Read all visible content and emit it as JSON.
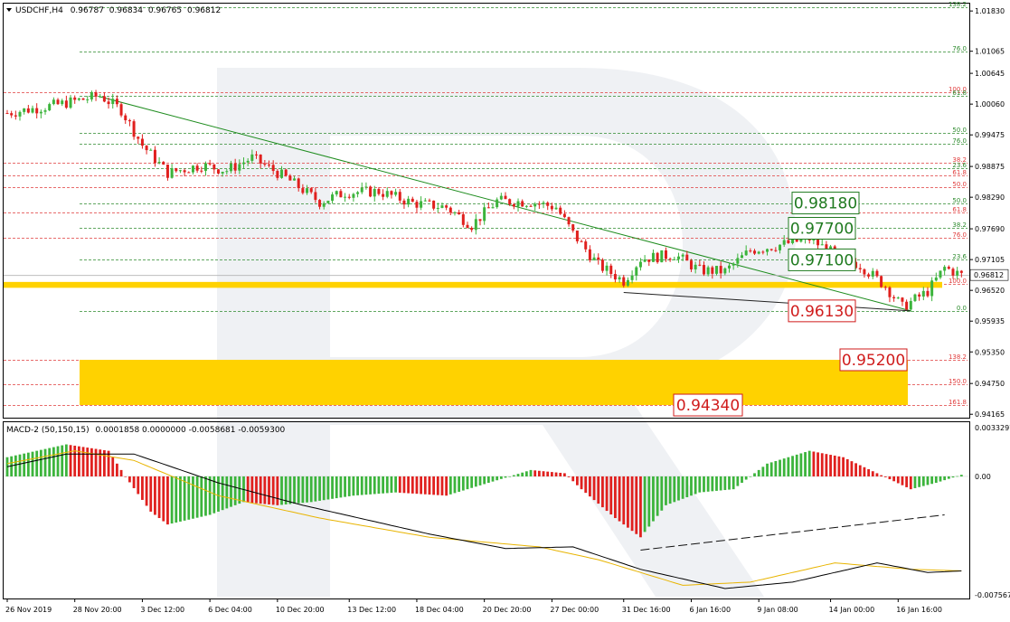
{
  "main_header": {
    "symbol": "USDCHF,H4",
    "open": "0.96787",
    "high": "0.96834",
    "low": "0.96765",
    "close": "0.96812"
  },
  "macd_header": {
    "name": "MACD-2 (50,150,15)",
    "values": "0.0001858 0.0000000 -0.0058681 -0.0059300"
  },
  "price_axis": {
    "ticks": [
      "1.01830",
      "1.01065",
      "1.00645",
      "1.00060",
      "0.99475",
      "0.98875",
      "0.98290",
      "0.97690",
      "0.97105",
      "0.96520",
      "0.95935",
      "0.95350",
      "0.94750",
      "0.94165"
    ],
    "current_price": "0.96812"
  },
  "macd_axis": {
    "ticks": [
      "0.0033297",
      "0.00",
      "-0.007567"
    ]
  },
  "time_axis": {
    "labels": [
      "26 Nov 2019",
      "28 Nov 20:00",
      "3 Dec 12:00",
      "6 Dec 04:00",
      "10 Dec 20:00",
      "13 Dec 12:00",
      "18 Dec 04:00",
      "20 Dec 20:00",
      "27 Dec 00:00",
      "31 Dec 16:00",
      "6 Jan 16:00",
      "9 Jan 08:00",
      "14 Jan 00:00",
      "16 Jan 16:00"
    ]
  },
  "target_boxes": [
    {
      "label": "0.98180",
      "style": "green"
    },
    {
      "label": "0.97700",
      "style": "green"
    },
    {
      "label": "0.97100",
      "style": "green"
    },
    {
      "label": "0.96130",
      "style": "red"
    },
    {
      "label": "0.95200",
      "style": "red"
    },
    {
      "label": "0.94340",
      "style": "red"
    }
  ],
  "colors": {
    "bull_candle": "#3cb43c",
    "bear_candle": "#e0201e",
    "fib_green": "#2e8b2e",
    "fib_red": "#e03c3c",
    "highlight_yellow": "#ffd200",
    "macd_signal": "#000000",
    "macd_slow": "#e8b400"
  },
  "chart_data": [
    {
      "type": "candlestick",
      "title": "USDCHF,H4",
      "ylim": [
        0.941,
        1.0197
      ],
      "grid": false,
      "fib_levels_top": [
        {
          "label": "138.2",
          "price": 1.019,
          "color": "green"
        },
        {
          "label": "76.0",
          "price": 1.0106,
          "color": "green"
        },
        {
          "label": "100.0",
          "price": 1.0028,
          "color": "red"
        },
        {
          "label": "61.8",
          "price": 1.0022,
          "color": "green"
        },
        {
          "label": "50.0",
          "price": 0.9952,
          "color": "green"
        },
        {
          "label": "76.0",
          "price": 0.993,
          "color": "green"
        },
        {
          "label": "38.2",
          "price": 0.9895,
          "color": "red"
        },
        {
          "label": "23.6",
          "price": 0.9885,
          "color": "green"
        },
        {
          "label": "61.8",
          "price": 0.987,
          "color": "red"
        },
        {
          "label": "50.0",
          "price": 0.9849,
          "color": "red"
        },
        {
          "label": "50.0",
          "price": 0.9818,
          "color": "green"
        },
        {
          "label": "61.8",
          "price": 0.98,
          "color": "red"
        },
        {
          "label": "38.2",
          "price": 0.977,
          "color": "green"
        },
        {
          "label": "76.0",
          "price": 0.9752,
          "color": "red"
        },
        {
          "label": "23.6",
          "price": 0.971,
          "color": "green"
        },
        {
          "label": "100.0",
          "price": 0.9665,
          "color": "red"
        },
        {
          "label": "0.0",
          "price": 0.9613,
          "color": "green"
        },
        {
          "label": "138.2",
          "price": 0.952,
          "color": "red"
        },
        {
          "label": "150.0",
          "price": 0.9474,
          "color": "red"
        },
        {
          "label": "161.8",
          "price": 0.9434,
          "color": "red"
        }
      ],
      "anchors": [
        {
          "t": 0,
          "p": 0.9989
        },
        {
          "t": 12,
          "p": 1.0005
        },
        {
          "t": 22,
          "p": 1.0022
        },
        {
          "t": 27,
          "p": 0.9995
        },
        {
          "t": 32,
          "p": 0.9928
        },
        {
          "t": 38,
          "p": 0.9875
        },
        {
          "t": 46,
          "p": 0.989
        },
        {
          "t": 52,
          "p": 0.988
        },
        {
          "t": 58,
          "p": 0.9904
        },
        {
          "t": 66,
          "p": 0.9866
        },
        {
          "t": 74,
          "p": 0.982
        },
        {
          "t": 80,
          "p": 0.9838
        },
        {
          "t": 88,
          "p": 0.984
        },
        {
          "t": 96,
          "p": 0.9818
        },
        {
          "t": 104,
          "p": 0.981
        },
        {
          "t": 110,
          "p": 0.9776
        },
        {
          "t": 116,
          "p": 0.9822
        },
        {
          "t": 124,
          "p": 0.982
        },
        {
          "t": 130,
          "p": 0.981
        },
        {
          "t": 134,
          "p": 0.976
        },
        {
          "t": 140,
          "p": 0.97
        },
        {
          "t": 146,
          "p": 0.967
        },
        {
          "t": 150,
          "p": 0.9712
        },
        {
          "t": 158,
          "p": 0.972
        },
        {
          "t": 164,
          "p": 0.969
        },
        {
          "t": 170,
          "p": 0.9688
        },
        {
          "t": 176,
          "p": 0.9728
        },
        {
          "t": 184,
          "p": 0.974
        },
        {
          "t": 190,
          "p": 0.975
        },
        {
          "t": 196,
          "p": 0.972
        },
        {
          "t": 202,
          "p": 0.97
        },
        {
          "t": 208,
          "p": 0.966
        },
        {
          "t": 212,
          "p": 0.962
        },
        {
          "t": 218,
          "p": 0.965
        },
        {
          "t": 222,
          "p": 0.9695
        },
        {
          "t": 226,
          "p": 0.9681
        }
      ],
      "trendlines": [
        {
          "from": {
            "t": 22,
            "p": 1.002
          },
          "to": {
            "t": 214,
            "p": 0.9613
          },
          "color": "green"
        },
        {
          "from": {
            "t": 146,
            "p": 0.9648
          },
          "to": {
            "t": 214,
            "p": 0.9613
          },
          "color": "black"
        }
      ]
    },
    {
      "type": "bar",
      "title": "MACD-2 (50,150,15)",
      "ylim": [
        -0.007567,
        0.0033297
      ],
      "histogram_anchors": [
        {
          "t": 0,
          "v": 0.0012
        },
        {
          "t": 14,
          "v": 0.002
        },
        {
          "t": 24,
          "v": 0.0016
        },
        {
          "t": 28,
          "v": 0.0
        },
        {
          "t": 34,
          "v": -0.0022
        },
        {
          "t": 38,
          "v": -0.003
        },
        {
          "t": 48,
          "v": -0.0024
        },
        {
          "t": 56,
          "v": -0.0016
        },
        {
          "t": 64,
          "v": -0.0018
        },
        {
          "t": 72,
          "v": -0.0016
        },
        {
          "t": 82,
          "v": -0.0012
        },
        {
          "t": 92,
          "v": -0.001
        },
        {
          "t": 104,
          "v": -0.0012
        },
        {
          "t": 114,
          "v": -0.0004
        },
        {
          "t": 124,
          "v": 0.0004
        },
        {
          "t": 132,
          "v": 0.0002
        },
        {
          "t": 136,
          "v": -0.0008
        },
        {
          "t": 144,
          "v": -0.0026
        },
        {
          "t": 150,
          "v": -0.0038
        },
        {
          "t": 156,
          "v": -0.0018
        },
        {
          "t": 164,
          "v": -0.001
        },
        {
          "t": 172,
          "v": -0.0008
        },
        {
          "t": 180,
          "v": 0.0008
        },
        {
          "t": 190,
          "v": 0.0016
        },
        {
          "t": 198,
          "v": 0.0012
        },
        {
          "t": 206,
          "v": 0.0002
        },
        {
          "t": 214,
          "v": -0.0008
        },
        {
          "t": 220,
          "v": -0.0004
        },
        {
          "t": 226,
          "v": 0.0001
        }
      ],
      "signal_line": [
        {
          "t": 0,
          "v": 0.0006
        },
        {
          "t": 14,
          "v": 0.0014
        },
        {
          "t": 30,
          "v": 0.0014
        },
        {
          "t": 50,
          "v": -0.0004
        },
        {
          "t": 70,
          "v": -0.0018
        },
        {
          "t": 100,
          "v": -0.0036
        },
        {
          "t": 118,
          "v": -0.0045
        },
        {
          "t": 134,
          "v": -0.0044
        },
        {
          "t": 150,
          "v": -0.0058
        },
        {
          "t": 170,
          "v": -0.007
        },
        {
          "t": 186,
          "v": -0.0066
        },
        {
          "t": 206,
          "v": -0.0054
        },
        {
          "t": 218,
          "v": -0.006
        },
        {
          "t": 226,
          "v": -0.0059
        }
      ],
      "slow_line": [
        {
          "t": 0,
          "v": 0.0008
        },
        {
          "t": 16,
          "v": 0.0016
        },
        {
          "t": 30,
          "v": 0.001
        },
        {
          "t": 50,
          "v": -0.0012
        },
        {
          "t": 74,
          "v": -0.0026
        },
        {
          "t": 100,
          "v": -0.0038
        },
        {
          "t": 126,
          "v": -0.0044
        },
        {
          "t": 140,
          "v": -0.0052
        },
        {
          "t": 160,
          "v": -0.0068
        },
        {
          "t": 176,
          "v": -0.0066
        },
        {
          "t": 196,
          "v": -0.0054
        },
        {
          "t": 214,
          "v": -0.0058
        },
        {
          "t": 226,
          "v": -0.0059
        }
      ],
      "trendline": {
        "from": {
          "t": 150,
          "v": -0.0046
        },
        "to": {
          "t": 222,
          "v": -0.0024
        }
      }
    }
  ]
}
